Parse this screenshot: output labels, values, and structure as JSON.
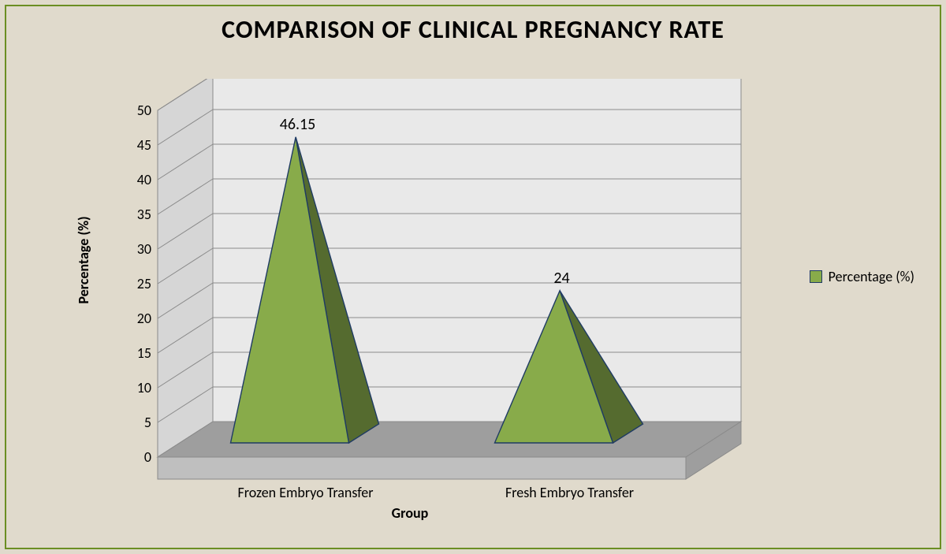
{
  "title": "COMPARISON OF CLINICAL PREGNANCY RATE",
  "title_fontsize": 32,
  "background_color": "#e0dacc",
  "border_color": "#6b8e23",
  "chart": {
    "type": "3d-pyramid",
    "categories": [
      "Frozen Embryo Transfer",
      "Fresh Embryo Transfer"
    ],
    "values": [
      46.15,
      24
    ],
    "series_name": "Percentage (%)",
    "pyramid_front_color": "#88ab4a",
    "pyramid_side_color": "#556b2f",
    "pyramid_outline": "#1f3b63",
    "back_wall_color": "#e9e9e9",
    "side_wall_color": "#d6d6d6",
    "floor_color": "#9e9e9e",
    "floor_side_color": "#bfbfbf",
    "grid_color": "#8a8a8a",
    "xlabel": "Group",
    "ylabel": "Percentage (%)",
    "label_fontsize": 18,
    "ylim": [
      0,
      50
    ],
    "ytick_step": 5,
    "yticks": [
      0,
      5,
      10,
      15,
      20,
      25,
      30,
      35,
      40,
      45,
      50
    ],
    "data_label_fontsize": 20,
    "cat_label_fontsize": 18,
    "text_color": "#000000",
    "legend_position": "right"
  }
}
